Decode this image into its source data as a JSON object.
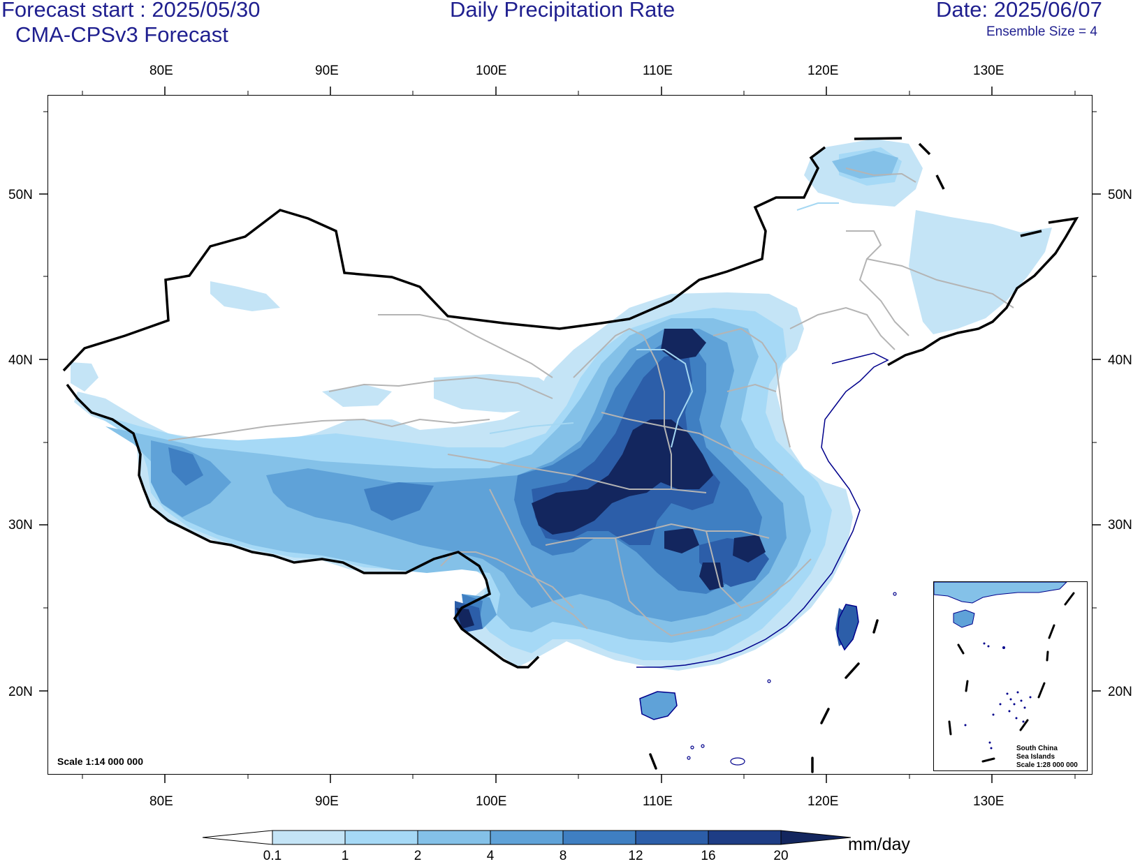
{
  "header": {
    "forecast_start": "Forecast start : 2025/05/30",
    "model": "CMA-CPSv3 Forecast",
    "title": "Daily Precipitation Rate",
    "date": "Date: 2025/06/07",
    "ensemble": "Ensemble Size = 4"
  },
  "axes": {
    "lon_labels": [
      "80E",
      "90E",
      "100E",
      "110E",
      "120E",
      "130E"
    ],
    "lat_labels": [
      "50N",
      "40N",
      "30N",
      "20N"
    ]
  },
  "map": {
    "scale": "Scale 1:14 000 000",
    "inset": {
      "line1": "South China",
      "line2": "Sea Islands",
      "line3": "Scale 1:28 000 000"
    }
  },
  "colorbar": {
    "labels": [
      "0.1",
      "1",
      "2",
      "4",
      "8",
      "12",
      "16",
      "20"
    ],
    "unit": "mm/day",
    "colors": [
      "#ffffff",
      "#c4e4f6",
      "#a6d9f6",
      "#84c1e8",
      "#5fa2d8",
      "#3f7fc2",
      "#2c5ea9",
      "#1e3d85",
      "#13265e"
    ]
  },
  "colors": {
    "title_text": "#1f1f8f",
    "border": "#000000",
    "province_lines": "#b4b4b4",
    "coastline": "#00008b"
  }
}
